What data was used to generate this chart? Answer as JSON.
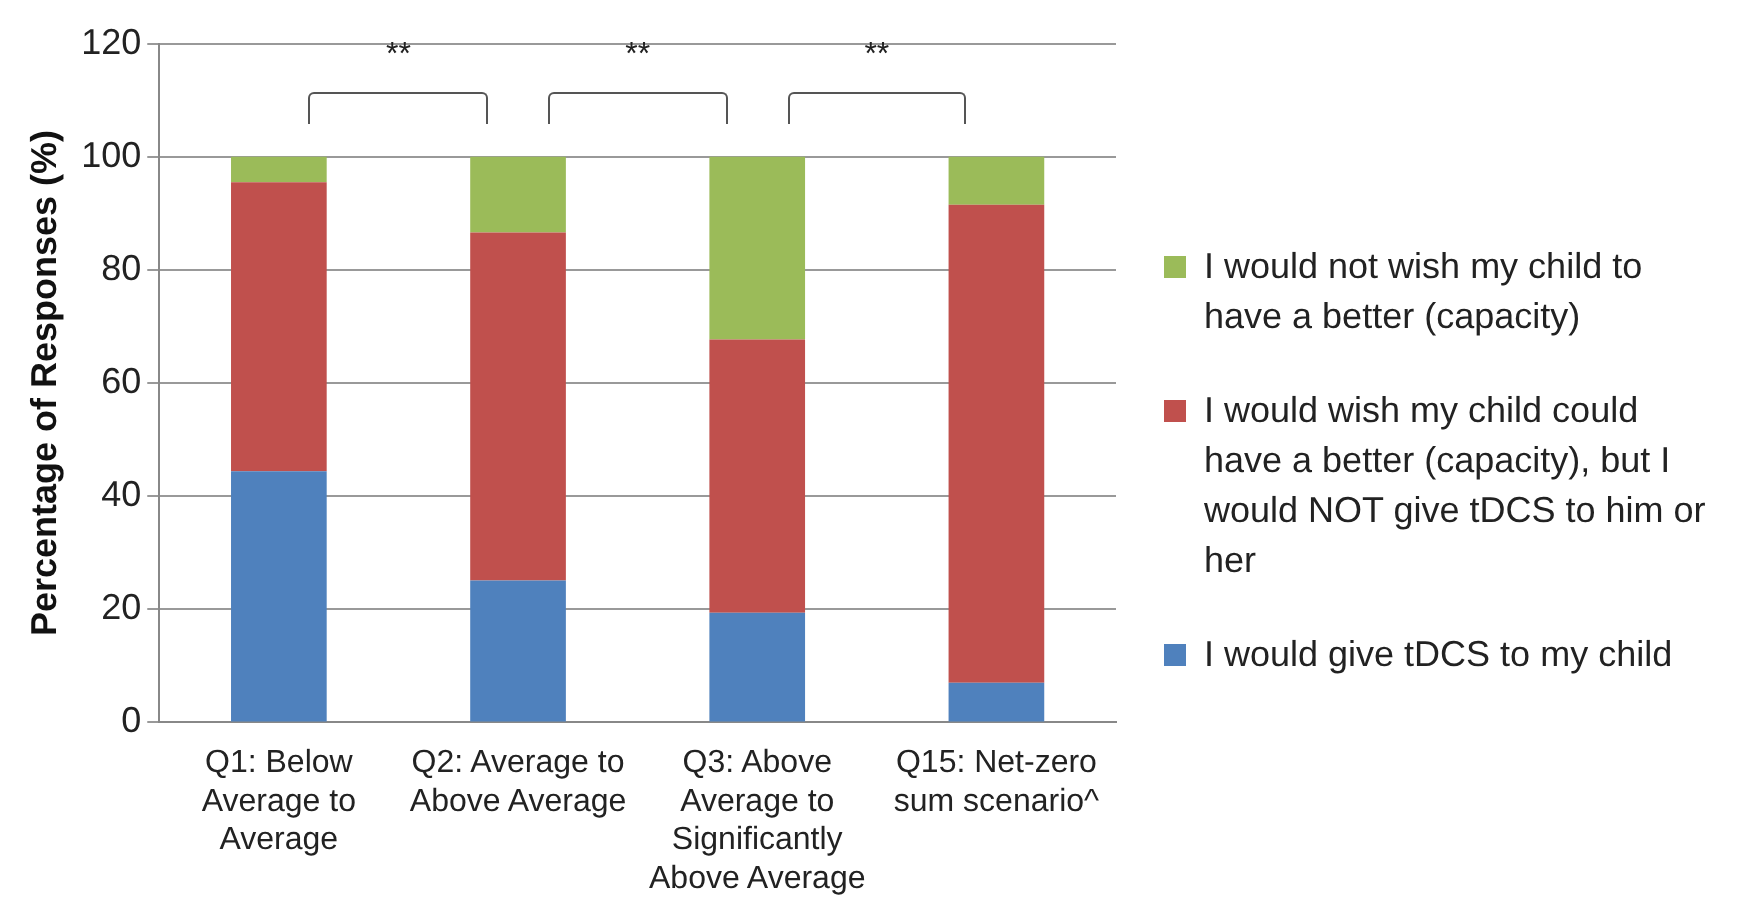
{
  "chart_data": {
    "type": "bar",
    "stacked": true,
    "ylabel": "Percentage of Responses (%)",
    "categories": [
      "Q1: Below Average to Average",
      "Q2: Average to Above Average",
      "Q3: Above Average to Significantly Above Average",
      "Q15: Net-zero sum scenario^"
    ],
    "series": [
      {
        "name": "I would give tDCS to my child",
        "color": "#4f81bd",
        "values": [
          44.4,
          25.1,
          19.4,
          7.0
        ]
      },
      {
        "name": "I would wish my child could have a better (capacity), but I would NOT give tDCS to him or her",
        "color": "#c0504d",
        "values": [
          51.1,
          61.5,
          48.3,
          84.5
        ]
      },
      {
        "name": "I would not wish my child to have a better (capacity)",
        "color": "#9bbb59",
        "values": [
          4.5,
          13.4,
          32.3,
          8.5
        ]
      }
    ],
    "ylim": [
      0,
      120
    ],
    "yticks": [
      0,
      20,
      40,
      60,
      80,
      100,
      120
    ],
    "grid": "y",
    "legend": "right",
    "annotations": [
      "**",
      "**",
      "**"
    ]
  }
}
